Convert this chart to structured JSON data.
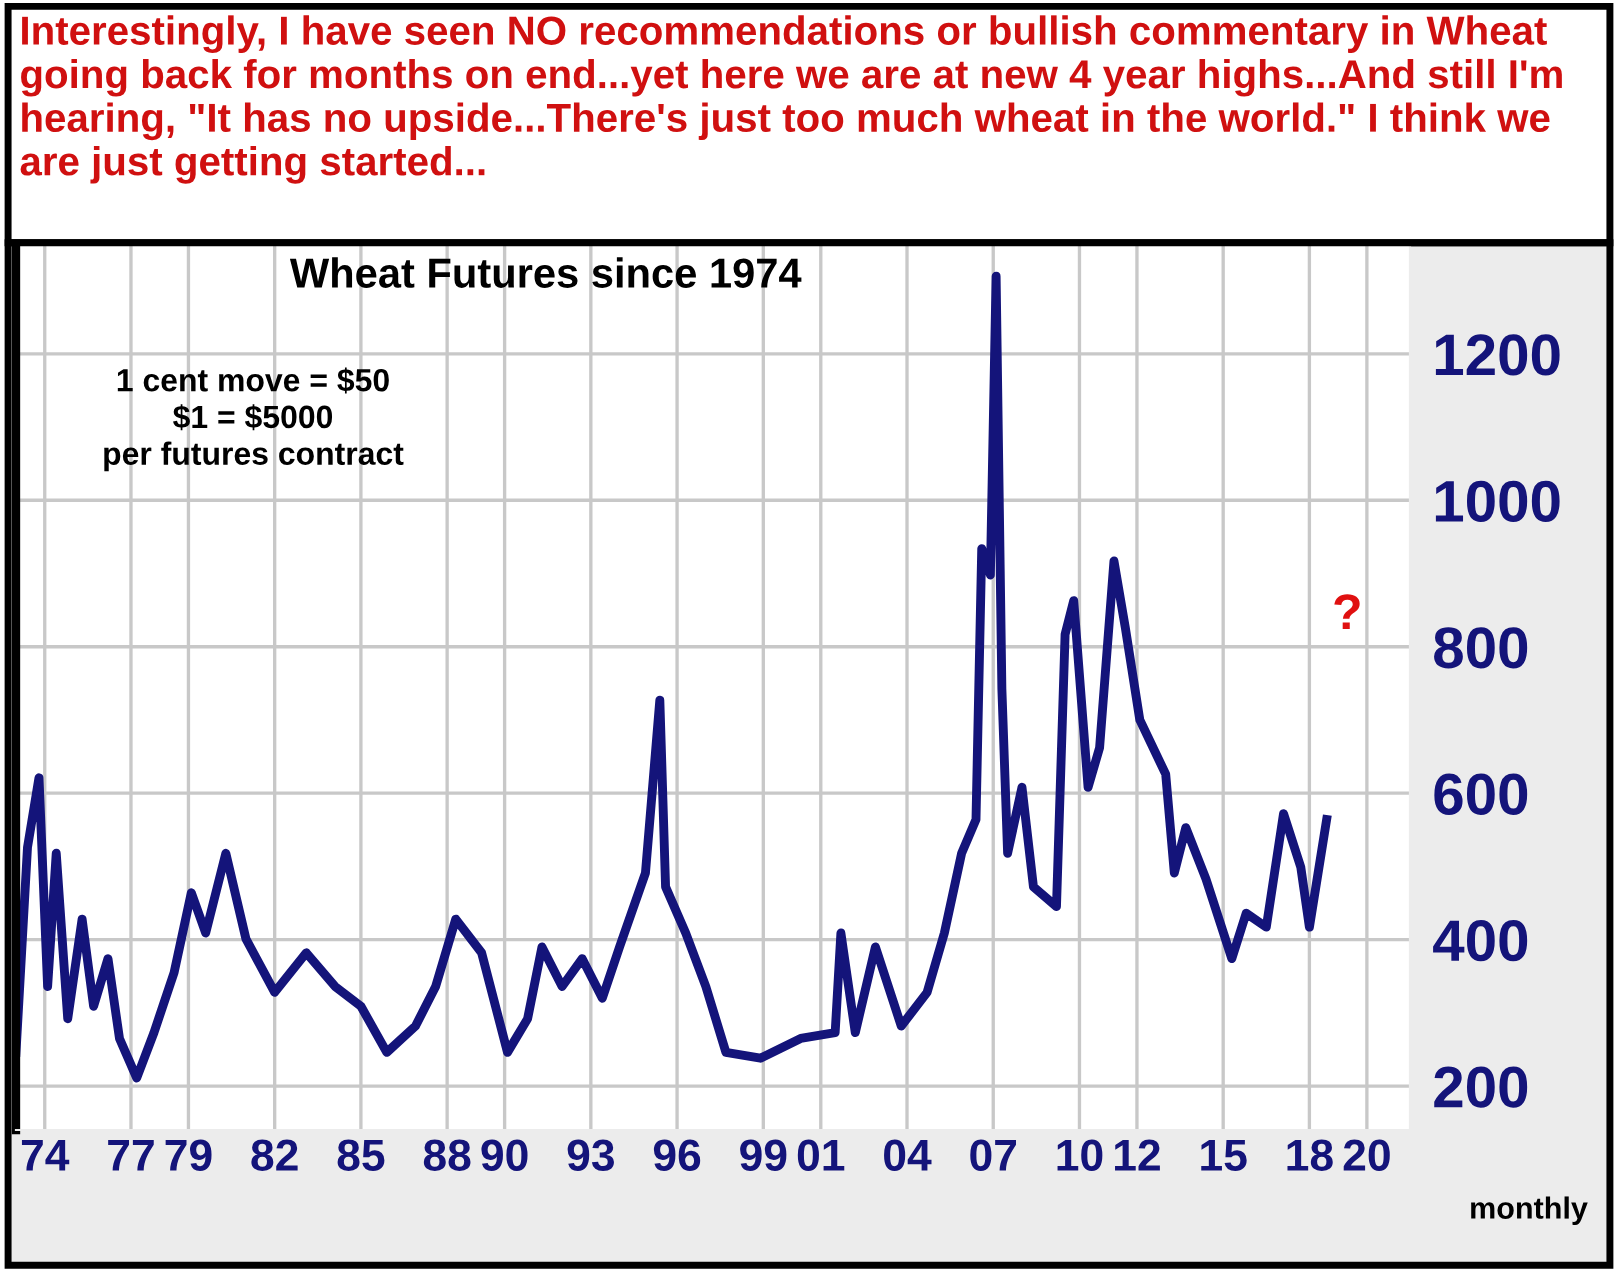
{
  "chart_data": {
    "type": "line",
    "subtitle": "Interestingly, I have seen NO recommendations or bullish commentary in Wheat going back for months on end...yet here we are at new 4 year highs...And still I'm hearing, \"It has no upside...There's just too much wheat in the world.\" I think we are just getting started...",
    "title": "Wheat Futures since 1974",
    "annotations": [
      "1 cent move = $50\n$1 = $5000\nper futures contract",
      "monthly",
      "?"
    ],
    "x": [
      1973.0,
      1973.4,
      1973.8,
      1974.1,
      1974.4,
      1974.8,
      1975.3,
      1975.7,
      1976.2,
      1976.6,
      1977.2,
      1977.8,
      1978.5,
      1979.1,
      1979.6,
      1980.3,
      1981.0,
      1982.0,
      1983.1,
      1984.1,
      1985.0,
      1985.9,
      1986.9,
      1987.6,
      1988.3,
      1989.2,
      1990.1,
      1990.8,
      1991.3,
      1992.0,
      1992.7,
      1993.4,
      1994.0,
      1994.9,
      1995.4,
      1995.6,
      1996.3,
      1997.0,
      1997.7,
      1998.9,
      2000.3,
      2001.5,
      2001.7,
      2002.2,
      2002.9,
      2003.8,
      2004.7,
      2005.3,
      2005.9,
      2006.4,
      2006.6,
      2006.9,
      2007.1,
      2007.3,
      2007.5,
      2008.0,
      2008.4,
      2009.2,
      2009.5,
      2009.8,
      2010.3,
      2010.7,
      2011.2,
      2011.6,
      2012.1,
      2013.0,
      2013.3,
      2013.7,
      2014.4,
      2015.3,
      2015.8,
      2016.5,
      2017.1,
      2017.7,
      2018.0,
      2018.6
    ],
    "series": [
      {
        "color": "#14147a",
        "values": [
          246,
          526,
          621,
          336,
          518,
          292,
          428,
          309,
          374,
          265,
          211,
          273,
          355,
          464,
          409,
          518,
          401,
          328,
          382,
          336,
          309,
          246,
          282,
          336,
          428,
          382,
          246,
          292,
          390,
          336,
          374,
          320,
          390,
          491,
          727,
          472,
          409,
          336,
          246,
          238,
          265,
          273,
          409,
          273,
          390,
          282,
          328,
          409,
          518,
          564,
          934,
          898,
          1306,
          743,
          518,
          608,
          472,
          445,
          817,
          863,
          608,
          662,
          917,
          825,
          700,
          626,
          491,
          553,
          483,
          374,
          436,
          417,
          572,
          499,
          417,
          564
        ]
      }
    ],
    "xlim": [
      1973.0,
      2021.5
    ],
    "ylim": [
      140,
      1350
    ],
    "xticks": [
      {
        "value": 1974,
        "label": "74"
      },
      {
        "value": 1977,
        "label": "77"
      },
      {
        "value": 1979,
        "label": "79"
      },
      {
        "value": 1982,
        "label": "82"
      },
      {
        "value": 1985,
        "label": "85"
      },
      {
        "value": 1988,
        "label": "88"
      },
      {
        "value": 1990,
        "label": "90"
      },
      {
        "value": 1993,
        "label": "93"
      },
      {
        "value": 1996,
        "label": "96"
      },
      {
        "value": 1999,
        "label": "99"
      },
      {
        "value": 2001,
        "label": "01"
      },
      {
        "value": 2004,
        "label": "04"
      },
      {
        "value": 2007,
        "label": "07"
      },
      {
        "value": 2010,
        "label": "10"
      },
      {
        "value": 2012,
        "label": "12"
      },
      {
        "value": 2015,
        "label": "15"
      },
      {
        "value": 2018,
        "label": "18"
      },
      {
        "value": 2020,
        "label": "20"
      }
    ],
    "yticks": [
      200,
      400,
      600,
      800,
      1000,
      1200
    ],
    "grid": true,
    "marker": "none",
    "line_style": "solid"
  }
}
